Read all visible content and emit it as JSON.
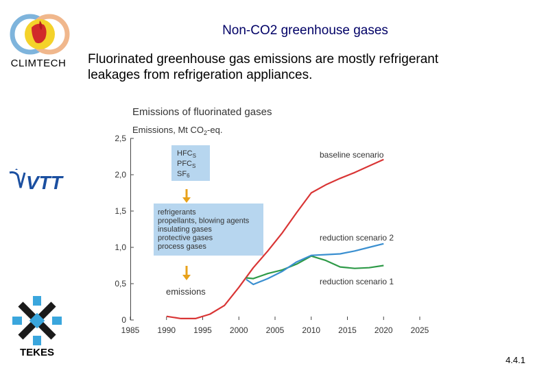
{
  "slide": {
    "title": "Non-CO2 greenhouse gases",
    "subtitle_line1": "Fluorinated greenhouse gas emissions are mostly refrigerant",
    "subtitle_line2": "leakages from refrigeration appliances.",
    "page_number": "4.4.1"
  },
  "logos": {
    "climtech": "CLIMTECH",
    "vtt": "VTT",
    "tekes": "TEKES"
  },
  "colors": {
    "title": "#000066",
    "baseline": "#d93535",
    "reduction1": "#2e9a48",
    "reduction2": "#3a8fd0",
    "box": "#b7d6ef",
    "arrow": "#e8a21b"
  },
  "chart_data": {
    "type": "line",
    "title": "Emissions of fluorinated gases",
    "ylabel_prefix": "Emissions, Mt CO",
    "ylabel_sub": "2",
    "ylabel_suffix": "-eq.",
    "xlim": [
      1985,
      2025
    ],
    "ylim": [
      0,
      2.5
    ],
    "x_ticks": [
      "1985",
      "1990",
      "1995",
      "2000",
      "2005",
      "2010",
      "2015",
      "2020",
      "2025"
    ],
    "y_ticks": [
      "0",
      "0,5",
      "1,0",
      "1,5",
      "2,0",
      "2,5"
    ],
    "series": [
      {
        "name": "baseline scenario",
        "x": [
          1990,
          1992,
          1994,
          1996,
          1998,
          2000,
          2002,
          2004,
          2006,
          2008,
          2010,
          2012,
          2014,
          2016,
          2018,
          2020
        ],
        "y": [
          0.05,
          0.02,
          0.02,
          0.08,
          0.2,
          0.45,
          0.72,
          0.95,
          1.2,
          1.48,
          1.75,
          1.86,
          1.95,
          2.03,
          2.12,
          2.21
        ]
      },
      {
        "name": "reduction scenario 1",
        "x": [
          2001,
          2002,
          2004,
          2006,
          2008,
          2010,
          2012,
          2014,
          2016,
          2018,
          2020
        ],
        "y": [
          0.58,
          0.57,
          0.64,
          0.69,
          0.77,
          0.88,
          0.82,
          0.73,
          0.71,
          0.72,
          0.75
        ]
      },
      {
        "name": "reduction scenario 2",
        "x": [
          2001,
          2002,
          2004,
          2006,
          2008,
          2010,
          2012,
          2014,
          2016,
          2018,
          2020
        ],
        "y": [
          0.56,
          0.49,
          0.57,
          0.67,
          0.8,
          0.89,
          0.9,
          0.91,
          0.95,
          1.0,
          1.05
        ]
      }
    ],
    "annotations": {
      "gases_box": {
        "hfc": "HFC",
        "pfc": "PFC",
        "sf": "SF",
        "sub_s": "S",
        "sub_6": "6"
      },
      "uses_box": [
        "refrigerants",
        "propellants, blowing agents",
        "insulating gases",
        "protective gases",
        "process gases"
      ],
      "emissions_label": "emissions"
    }
  }
}
